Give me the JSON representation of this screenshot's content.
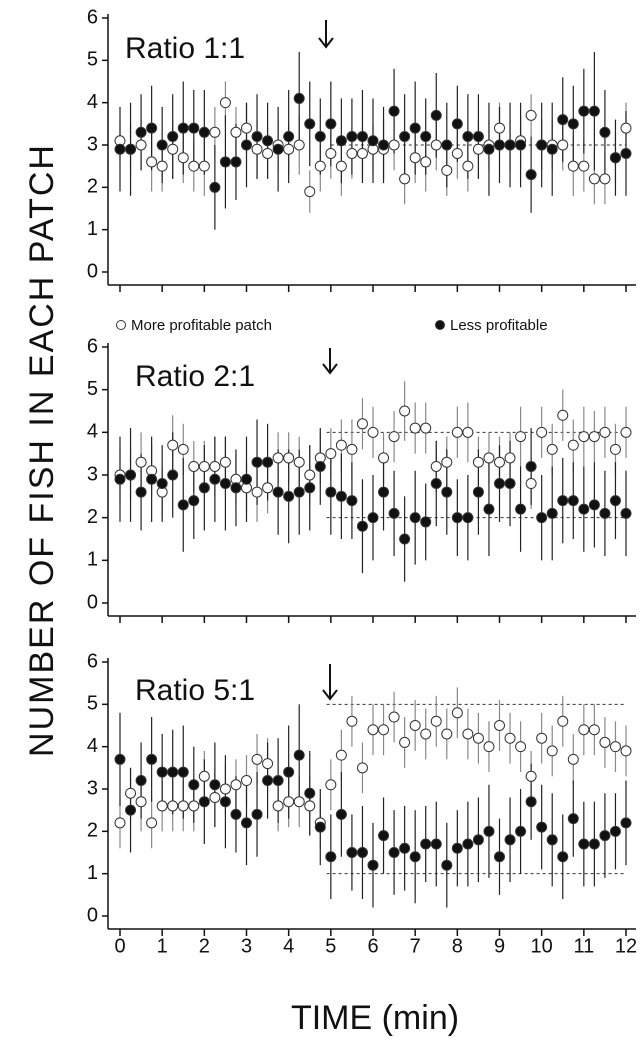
{
  "y_label": "NUMBER OF FISH IN EACH PATCH",
  "x_label": "TIME (min)",
  "chart_data": [
    {
      "type": "scatter",
      "title": "Ratio 1:1",
      "x": [
        0,
        0.25,
        0.5,
        0.75,
        1,
        1.25,
        1.5,
        1.75,
        2,
        2.25,
        2.5,
        2.75,
        3,
        3.25,
        3.5,
        3.75,
        4,
        4.25,
        4.5,
        4.75,
        5,
        5.25,
        5.5,
        5.75,
        6,
        6.25,
        6.5,
        6.75,
        7,
        7.25,
        7.5,
        7.75,
        8,
        8.25,
        8.5,
        8.75,
        9,
        9.25,
        9.5,
        9.75,
        10,
        10.25,
        10.5,
        10.75,
        11,
        11.25,
        11.5,
        11.75,
        12
      ],
      "xlim": [
        0,
        12
      ],
      "xticks": [
        0,
        1,
        2,
        3,
        4,
        5,
        6,
        7,
        8,
        9,
        10,
        11,
        12
      ],
      "ylim": [
        0,
        6
      ],
      "yticks": [
        0,
        1,
        2,
        3,
        4,
        5,
        6
      ],
      "reference_lines": [
        {
          "y": 3,
          "x": [
            5,
            12
          ]
        }
      ],
      "series": [
        {
          "name": "More profitable patch",
          "color": "#ffffff",
          "values": [
            3.1,
            2.9,
            3.0,
            2.6,
            2.5,
            2.9,
            2.7,
            2.5,
            2.5,
            3.3,
            4.0,
            3.3,
            3.4,
            2.9,
            2.8,
            3.0,
            2.9,
            3.0,
            1.9,
            2.5,
            2.8,
            2.5,
            2.8,
            2.8,
            2.9,
            2.9,
            3.0,
            2.2,
            2.7,
            2.6,
            3.0,
            2.4,
            2.8,
            2.5,
            2.9,
            3.0,
            3.4,
            3.0,
            3.1,
            3.7,
            3.0,
            3.0,
            3.0,
            2.5,
            2.5,
            2.2,
            2.2,
            2.7,
            3.4
          ],
          "errors": [
            0.5,
            0.6,
            0.6,
            0.7,
            0.6,
            0.7,
            0.6,
            0.6,
            0.7,
            0.6,
            0.5,
            0.6,
            0.6,
            0.7,
            0.6,
            0.6,
            0.6,
            0.7,
            0.5,
            0.6,
            0.6,
            0.7,
            0.6,
            0.6,
            0.6,
            0.7,
            0.6,
            0.6,
            0.6,
            0.7,
            0.6,
            0.6,
            0.6,
            0.6,
            0.7,
            0.6,
            0.6,
            0.6,
            0.6,
            0.5,
            0.6,
            0.6,
            0.6,
            0.7,
            0.6,
            0.6,
            0.6,
            0.6,
            0.6
          ]
        },
        {
          "name": "Less profitable",
          "color": "#111111",
          "values": [
            2.9,
            2.9,
            3.3,
            3.4,
            3.0,
            3.2,
            3.4,
            3.4,
            3.3,
            2.0,
            2.6,
            2.6,
            3.0,
            3.2,
            3.1,
            2.9,
            3.2,
            4.1,
            3.5,
            3.2,
            3.5,
            3.1,
            3.2,
            3.2,
            3.1,
            3.0,
            3.8,
            3.2,
            3.4,
            3.2,
            3.7,
            3.0,
            3.5,
            3.2,
            3.2,
            2.9,
            3.0,
            3.0,
            3.0,
            2.3,
            3.0,
            2.9,
            3.6,
            3.5,
            3.8,
            3.8,
            3.3,
            2.7,
            2.8
          ],
          "errors": [
            1.0,
            1.1,
            0.9,
            1.0,
            0.9,
            1.0,
            1.1,
            0.9,
            1.0,
            1.0,
            1.1,
            0.9,
            1.0,
            1.0,
            0.9,
            1.0,
            1.1,
            1.1,
            1.0,
            0.9,
            1.0,
            1.0,
            0.9,
            1.1,
            1.0,
            0.9,
            1.0,
            1.0,
            1.1,
            0.9,
            1.0,
            1.0,
            0.9,
            1.0,
            1.0,
            1.1,
            0.9,
            1.0,
            1.0,
            0.9,
            1.0,
            1.1,
            1.0,
            0.9,
            1.0,
            1.4,
            1.0,
            0.9,
            1.0
          ]
        }
      ]
    },
    {
      "type": "scatter",
      "title": "Ratio 2:1",
      "x": [
        0,
        0.25,
        0.5,
        0.75,
        1,
        1.25,
        1.5,
        1.75,
        2,
        2.25,
        2.5,
        2.75,
        3,
        3.25,
        3.5,
        3.75,
        4,
        4.25,
        4.5,
        4.75,
        5,
        5.25,
        5.5,
        5.75,
        6,
        6.25,
        6.5,
        6.75,
        7,
        7.25,
        7.5,
        7.75,
        8,
        8.25,
        8.5,
        8.75,
        9,
        9.25,
        9.5,
        9.75,
        10,
        10.25,
        10.5,
        10.75,
        11,
        11.25,
        11.5,
        11.75,
        12
      ],
      "xlim": [
        0,
        12
      ],
      "xticks": [
        0,
        1,
        2,
        3,
        4,
        5,
        6,
        7,
        8,
        9,
        10,
        11,
        12
      ],
      "ylim": [
        0,
        6
      ],
      "yticks": [
        0,
        1,
        2,
        3,
        4,
        5,
        6
      ],
      "reference_lines": [
        {
          "y": 4,
          "x": [
            4.9,
            12
          ]
        },
        {
          "y": 2,
          "x": [
            4.9,
            12
          ]
        }
      ],
      "series": [
        {
          "color": "#ffffff",
          "values": [
            3.0,
            3.0,
            3.3,
            3.1,
            2.6,
            3.7,
            3.6,
            3.2,
            3.2,
            3.2,
            3.3,
            2.9,
            2.7,
            2.6,
            2.7,
            3.4,
            3.4,
            3.3,
            3.0,
            3.4,
            3.5,
            3.7,
            3.6,
            4.2,
            4.0,
            3.4,
            3.9,
            4.5,
            4.1,
            4.1,
            3.2,
            3.3,
            4.0,
            4.0,
            3.3,
            3.4,
            3.3,
            3.4,
            3.9,
            2.8,
            4.0,
            3.6,
            4.4,
            3.7,
            3.9,
            3.9,
            4.0,
            3.6,
            4.0
          ],
          "errors": [
            0.6,
            0.6,
            0.7,
            0.6,
            0.6,
            0.7,
            0.6,
            0.6,
            0.6,
            0.7,
            0.6,
            0.6,
            0.6,
            0.7,
            0.6,
            0.6,
            0.6,
            0.6,
            0.7,
            0.6,
            0.6,
            0.6,
            0.7,
            0.6,
            0.6,
            0.6,
            0.6,
            0.7,
            0.6,
            0.6,
            0.6,
            0.6,
            0.6,
            0.7,
            0.6,
            0.6,
            0.6,
            0.6,
            0.7,
            0.6,
            0.6,
            0.6,
            0.6,
            0.6,
            0.7,
            0.6,
            0.6,
            0.6,
            0.6
          ]
        },
        {
          "color": "#111111",
          "values": [
            2.9,
            3.0,
            2.6,
            2.9,
            2.8,
            3.0,
            2.3,
            2.4,
            2.7,
            2.9,
            2.8,
            2.7,
            2.9,
            3.3,
            3.3,
            2.6,
            2.5,
            2.6,
            2.7,
            3.2,
            2.6,
            2.5,
            2.4,
            1.8,
            2.0,
            2.6,
            2.1,
            1.5,
            2.0,
            1.9,
            2.8,
            2.6,
            2.0,
            2.0,
            2.6,
            2.2,
            2.8,
            2.8,
            2.2,
            3.2,
            2.0,
            2.1,
            2.4,
            2.4,
            2.2,
            2.3,
            2.1,
            2.4,
            2.1
          ],
          "errors": [
            1.0,
            1.1,
            0.9,
            1.0,
            0.9,
            1.0,
            1.1,
            0.9,
            1.0,
            1.0,
            1.1,
            0.9,
            1.0,
            1.0,
            0.9,
            1.0,
            1.1,
            1.0,
            1.0,
            0.9,
            1.0,
            1.0,
            0.9,
            1.1,
            1.0,
            0.9,
            1.0,
            1.0,
            1.1,
            0.9,
            1.0,
            1.0,
            0.9,
            1.0,
            1.0,
            1.1,
            0.9,
            1.0,
            1.0,
            0.9,
            1.0,
            1.1,
            1.0,
            0.9,
            1.0,
            1.0,
            1.0,
            0.9,
            1.0
          ]
        }
      ]
    },
    {
      "type": "scatter",
      "title": "Ratio 5:1",
      "x": [
        0,
        0.25,
        0.5,
        0.75,
        1,
        1.25,
        1.5,
        1.75,
        2,
        2.25,
        2.5,
        2.75,
        3,
        3.25,
        3.5,
        3.75,
        4,
        4.25,
        4.5,
        4.75,
        5,
        5.25,
        5.5,
        5.75,
        6,
        6.25,
        6.5,
        6.75,
        7,
        7.25,
        7.5,
        7.75,
        8,
        8.25,
        8.5,
        8.75,
        9,
        9.25,
        9.5,
        9.75,
        10,
        10.25,
        10.5,
        10.75,
        11,
        11.25,
        11.5,
        11.75,
        12
      ],
      "xlim": [
        0,
        12
      ],
      "xticks": [
        0,
        1,
        2,
        3,
        4,
        5,
        6,
        7,
        8,
        9,
        10,
        11,
        12
      ],
      "ylim": [
        0,
        6
      ],
      "yticks": [
        0,
        1,
        2,
        3,
        4,
        5,
        6
      ],
      "reference_lines": [
        {
          "y": 5,
          "x": [
            4.9,
            12
          ]
        },
        {
          "y": 1,
          "x": [
            4.9,
            12
          ]
        }
      ],
      "series": [
        {
          "color": "#ffffff",
          "values": [
            2.2,
            2.9,
            2.7,
            2.2,
            2.6,
            2.6,
            2.6,
            2.6,
            3.3,
            2.8,
            3.0,
            3.1,
            3.2,
            3.7,
            3.6,
            2.6,
            2.7,
            2.7,
            2.6,
            2.2,
            3.1,
            3.8,
            4.6,
            3.5,
            4.4,
            4.4,
            4.7,
            4.1,
            4.5,
            4.3,
            4.6,
            4.3,
            4.8,
            4.3,
            4.2,
            4.0,
            4.5,
            4.2,
            4.0,
            3.3,
            4.2,
            3.9,
            4.6,
            3.7,
            4.4,
            4.4,
            4.1,
            4.0,
            3.9
          ],
          "errors": [
            0.6,
            0.6,
            0.7,
            0.6,
            0.6,
            0.6,
            0.6,
            0.6,
            0.6,
            0.7,
            0.6,
            0.6,
            0.6,
            0.6,
            0.6,
            0.6,
            0.6,
            0.6,
            0.7,
            0.6,
            0.6,
            0.6,
            0.6,
            0.6,
            0.6,
            0.6,
            0.6,
            0.6,
            0.6,
            0.6,
            0.6,
            0.6,
            0.6,
            0.6,
            0.6,
            0.6,
            0.6,
            0.6,
            0.6,
            0.6,
            0.6,
            0.6,
            0.6,
            0.6,
            0.6,
            0.6,
            0.6,
            0.6,
            0.6
          ]
        },
        {
          "color": "#111111",
          "values": [
            3.7,
            2.5,
            3.2,
            3.7,
            3.4,
            3.4,
            3.4,
            3.1,
            2.7,
            3.1,
            2.7,
            2.4,
            2.2,
            2.4,
            3.2,
            3.2,
            3.4,
            3.8,
            2.9,
            2.1,
            1.4,
            2.4,
            1.5,
            1.5,
            1.2,
            1.9,
            1.5,
            1.6,
            1.4,
            1.7,
            1.7,
            1.2,
            1.6,
            1.7,
            1.8,
            2.0,
            1.4,
            1.8,
            2.0,
            2.7,
            2.1,
            1.8,
            1.4,
            2.3,
            1.7,
            1.7,
            1.9,
            2.0,
            2.2
          ],
          "errors": [
            1.1,
            1.0,
            0.9,
            1.0,
            0.9,
            1.0,
            1.1,
            0.9,
            1.0,
            1.0,
            1.1,
            0.9,
            1.0,
            1.0,
            0.9,
            1.0,
            1.1,
            1.2,
            1.0,
            0.9,
            1.0,
            1.0,
            0.9,
            1.1,
            1.0,
            0.9,
            1.0,
            1.0,
            1.1,
            0.9,
            1.0,
            1.0,
            0.9,
            1.0,
            1.0,
            1.1,
            0.9,
            1.0,
            1.0,
            0.9,
            1.0,
            1.1,
            1.0,
            0.9,
            1.0,
            1.0,
            1.0,
            0.9,
            1.0
          ]
        }
      ]
    }
  ]
}
